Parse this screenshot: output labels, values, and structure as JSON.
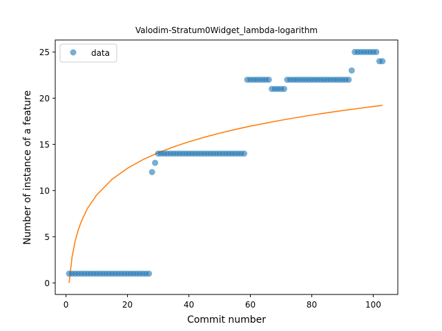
{
  "chart_data": {
    "type": "scatter",
    "title": "Valodim-Stratum0Widget_lambda-logarithm",
    "xlabel": "Commit number",
    "ylabel": "Number of instance of a feature",
    "xlim": [
      -3.5,
      108
    ],
    "ylim": [
      -1.25,
      26.3
    ],
    "xticks": [
      0,
      20,
      40,
      60,
      80,
      100
    ],
    "yticks": [
      0,
      5,
      10,
      15,
      20,
      25
    ],
    "grid": false,
    "legend": {
      "position": "top-left",
      "entries": [
        "data"
      ]
    },
    "colors": {
      "scatter": "#1f77b4",
      "fit": "#ff7f0e"
    },
    "series": [
      {
        "name": "data",
        "kind": "scatter",
        "x": [
          1,
          2,
          3,
          4,
          5,
          6,
          7,
          8,
          9,
          10,
          11,
          12,
          13,
          14,
          15,
          16,
          17,
          18,
          19,
          20,
          21,
          22,
          23,
          24,
          25,
          26,
          27,
          28,
          29,
          30,
          31,
          32,
          33,
          34,
          35,
          36,
          37,
          38,
          39,
          40,
          41,
          42,
          43,
          44,
          45,
          46,
          47,
          48,
          49,
          50,
          51,
          52,
          53,
          54,
          55,
          56,
          57,
          58,
          59,
          60,
          61,
          62,
          63,
          64,
          65,
          66,
          67,
          68,
          69,
          70,
          71,
          72,
          73,
          74,
          75,
          76,
          77,
          78,
          79,
          80,
          81,
          82,
          83,
          84,
          85,
          86,
          87,
          88,
          89,
          90,
          91,
          92,
          93,
          94,
          95,
          96,
          97,
          98,
          99,
          100,
          101,
          102,
          103
        ],
        "y": [
          1,
          1,
          1,
          1,
          1,
          1,
          1,
          1,
          1,
          1,
          1,
          1,
          1,
          1,
          1,
          1,
          1,
          1,
          1,
          1,
          1,
          1,
          1,
          1,
          1,
          1,
          1,
          12,
          13,
          14,
          14,
          14,
          14,
          14,
          14,
          14,
          14,
          14,
          14,
          14,
          14,
          14,
          14,
          14,
          14,
          14,
          14,
          14,
          14,
          14,
          14,
          14,
          14,
          14,
          14,
          14,
          14,
          14,
          22,
          22,
          22,
          22,
          22,
          22,
          22,
          22,
          21,
          21,
          21,
          21,
          21,
          22,
          22,
          22,
          22,
          22,
          22,
          22,
          22,
          22,
          22,
          22,
          22,
          22,
          22,
          22,
          22,
          22,
          22,
          22,
          22,
          22,
          23,
          25,
          25,
          25,
          25,
          25,
          25,
          25,
          25,
          24,
          24
        ]
      },
      {
        "kind": "line",
        "x": [
          1,
          2,
          3,
          4,
          5,
          7,
          10,
          15,
          20,
          25,
          30,
          35,
          40,
          45,
          50,
          55,
          60,
          65,
          70,
          75,
          80,
          85,
          90,
          95,
          100,
          103
        ],
        "y": [
          0,
          2.87,
          4.56,
          5.75,
          6.67,
          8.07,
          9.53,
          11.22,
          12.41,
          13.34,
          14.09,
          14.73,
          15.28,
          15.77,
          16.21,
          16.61,
          16.97,
          17.3,
          17.61,
          17.9,
          18.17,
          18.42,
          18.66,
          18.88,
          19.1,
          19.22
        ]
      }
    ]
  }
}
